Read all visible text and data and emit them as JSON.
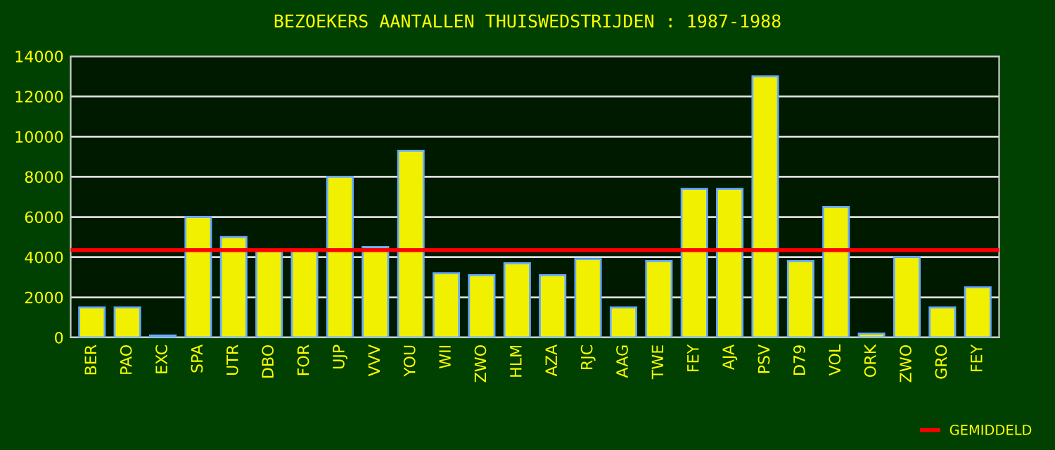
{
  "chart_data": {
    "type": "bar",
    "title": "BEZOEKERS AANTALLEN THUISWEDSTRIJDEN : 1987-1988",
    "categories": [
      "BER",
      "PAO",
      "EXC",
      "SPA",
      "UTR",
      "DBO",
      "FOR",
      "UJP",
      "VVV",
      "YOU",
      "WII",
      "ZWO",
      "HLM",
      "AZA",
      "RJC",
      "AAG",
      "TWE",
      "FEY",
      "AJA",
      "PSV",
      "D79",
      "VOL",
      "ORK",
      "ZWO",
      "GRO",
      "FEY"
    ],
    "values": [
      1500,
      1500,
      100,
      6000,
      5000,
      4300,
      4300,
      8000,
      4500,
      9300,
      3200,
      3100,
      3700,
      3100,
      3900,
      1500,
      3800,
      7400,
      7400,
      13000,
      3800,
      6500,
      200,
      4000,
      1500,
      2500
    ],
    "color": "#f0f000",
    "ylim": [
      0,
      14000
    ],
    "yticks": [
      0,
      2000,
      4000,
      6000,
      8000,
      10000,
      12000,
      14000
    ],
    "grid": "y",
    "ref_lines": [
      {
        "axis": "y",
        "value": 4350,
        "label": "GEMIDDELD",
        "color": "#ff0000"
      }
    ],
    "legend": "bottom right"
  }
}
